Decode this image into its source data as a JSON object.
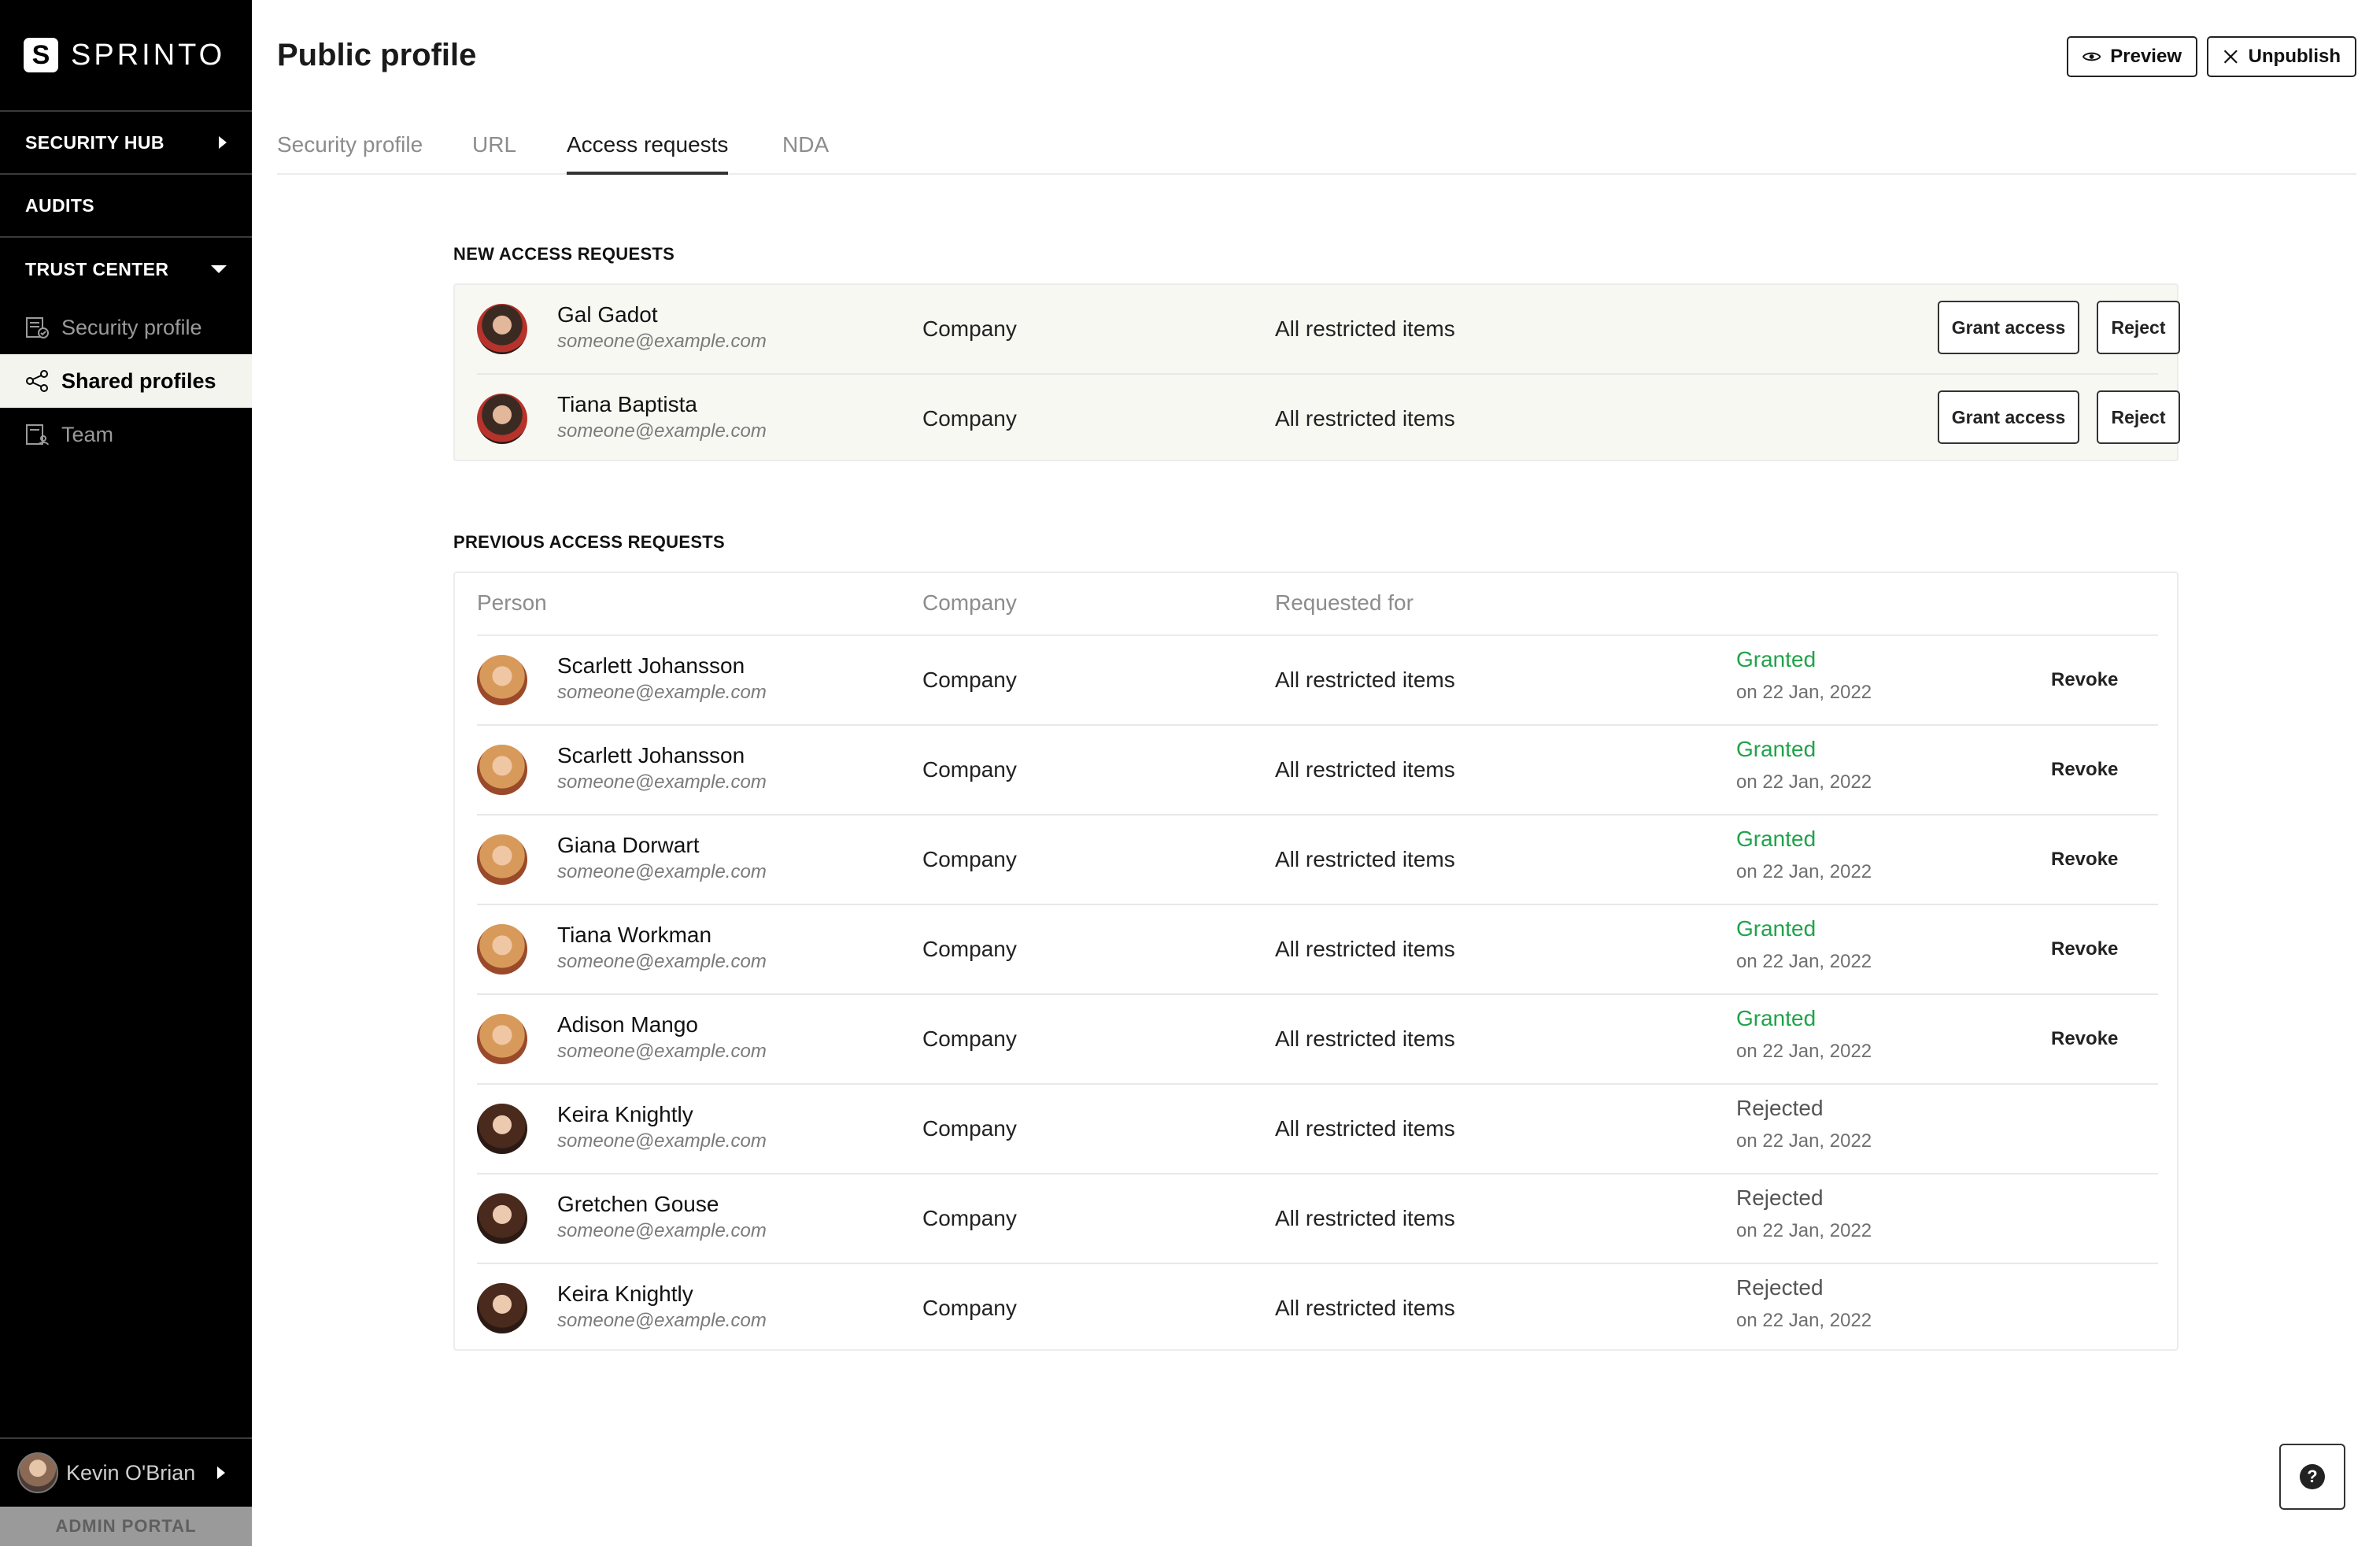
{
  "sidebar": {
    "brand": "SPRINTO",
    "brand_mark": "S",
    "sections": {
      "security_hub": "SECURITY HUB",
      "audits": "AUDITS",
      "trust_center": "TRUST CENTER"
    },
    "items": [
      {
        "label": "Security profile",
        "icon": "document-check-icon"
      },
      {
        "label": "Shared profiles",
        "icon": "share-icon"
      },
      {
        "label": "Team",
        "icon": "team-icon"
      }
    ],
    "user": {
      "name": "Kevin O'Brian"
    },
    "admin_portal": "ADMIN PORTAL"
  },
  "header": {
    "title": "Public profile",
    "preview_label": "Preview",
    "unpublish_label": "Unpublish"
  },
  "tabs": [
    "Security profile",
    "URL",
    "Access requests",
    "NDA"
  ],
  "active_tab": "Access requests",
  "new_requests": {
    "title": "NEW ACCESS REQUESTS",
    "grant_label": "Grant access",
    "reject_label": "Reject",
    "rows": [
      {
        "name": "Gal Gadot",
        "email": "someone@example.com",
        "company": "Company",
        "requested_for": "All restricted items"
      },
      {
        "name": "Tiana Baptista",
        "email": "someone@example.com",
        "company": "Company",
        "requested_for": "All restricted items"
      }
    ]
  },
  "previous_requests": {
    "title": "PREVIOUS ACCESS REQUESTS",
    "columns": {
      "person": "Person",
      "company": "Company",
      "requested_for": "Requested for"
    },
    "revoke_label": "Revoke",
    "rows": [
      {
        "name": "Scarlett Johansson",
        "email": "someone@example.com",
        "company": "Company",
        "requested_for": "All restricted items",
        "status": "Granted",
        "date": "on 22 Jan, 2022"
      },
      {
        "name": "Scarlett Johansson",
        "email": "someone@example.com",
        "company": "Company",
        "requested_for": "All restricted items",
        "status": "Granted",
        "date": "on 22 Jan, 2022"
      },
      {
        "name": "Giana Dorwart",
        "email": "someone@example.com",
        "company": "Company",
        "requested_for": "All restricted items",
        "status": "Granted",
        "date": "on 22 Jan, 2022"
      },
      {
        "name": "Tiana Workman",
        "email": "someone@example.com",
        "company": "Company",
        "requested_for": "All restricted items",
        "status": "Granted",
        "date": "on 22 Jan, 2022"
      },
      {
        "name": "Adison Mango",
        "email": "someone@example.com",
        "company": "Company",
        "requested_for": "All restricted items",
        "status": "Granted",
        "date": "on 22 Jan, 2022"
      },
      {
        "name": "Keira Knightly",
        "email": "someone@example.com",
        "company": "Company",
        "requested_for": "All restricted items",
        "status": "Rejected",
        "date": "on 22 Jan, 2022"
      },
      {
        "name": "Gretchen Gouse",
        "email": "someone@example.com",
        "company": "Company",
        "requested_for": "All restricted items",
        "status": "Rejected",
        "date": "on 22 Jan, 2022"
      },
      {
        "name": "Keira Knightly",
        "email": "someone@example.com",
        "company": "Company",
        "requested_for": "All restricted items",
        "status": "Rejected",
        "date": "on 22 Jan, 2022"
      }
    ]
  },
  "colors": {
    "granted": "#1fa34a",
    "sidebar_bg": "#000000",
    "active_item_bg": "#f4f4ef"
  },
  "help_icon": "help-icon"
}
